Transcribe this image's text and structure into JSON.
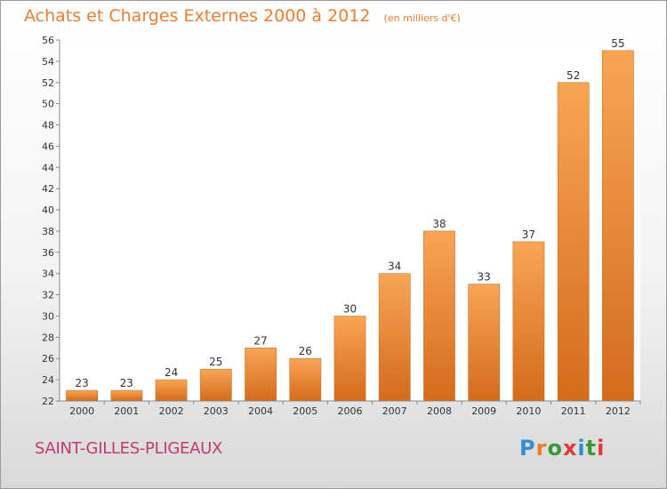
{
  "header": {
    "title": "Achats et Charges Externes 2000 à 2012",
    "unit": "(en milliers d'€)"
  },
  "footer": {
    "commune": "SAINT-GILLES-PLIGEAUX",
    "logo_text": "Proxiti"
  },
  "colors": {
    "title": "#ed7d33",
    "commune": "#c33a70",
    "bar_light": "#f7a555",
    "bar_dark": "#d46b1b",
    "logo": [
      "#2f8fd2",
      "#ef7d22",
      "#3a9a3a",
      "#e33636",
      "#2f8fd2",
      "#3a9a3a",
      "#e33636"
    ]
  },
  "chart_data": {
    "type": "bar",
    "categories": [
      "2000",
      "2001",
      "2002",
      "2003",
      "2004",
      "2005",
      "2006",
      "2007",
      "2008",
      "2009",
      "2010",
      "2011",
      "2012"
    ],
    "values": [
      23,
      23,
      24,
      25,
      27,
      26,
      30,
      34,
      38,
      33,
      37,
      52,
      55
    ],
    "title": "Achats et Charges Externes 2000 à 2012",
    "subtitle": "(en milliers d'€)",
    "xlabel": "",
    "ylabel": "",
    "ylim": [
      22,
      56
    ],
    "yticks": [
      22,
      24,
      26,
      28,
      30,
      32,
      34,
      36,
      38,
      40,
      42,
      44,
      46,
      48,
      50,
      52,
      54,
      56
    ],
    "grid": false,
    "data_labels": true
  }
}
